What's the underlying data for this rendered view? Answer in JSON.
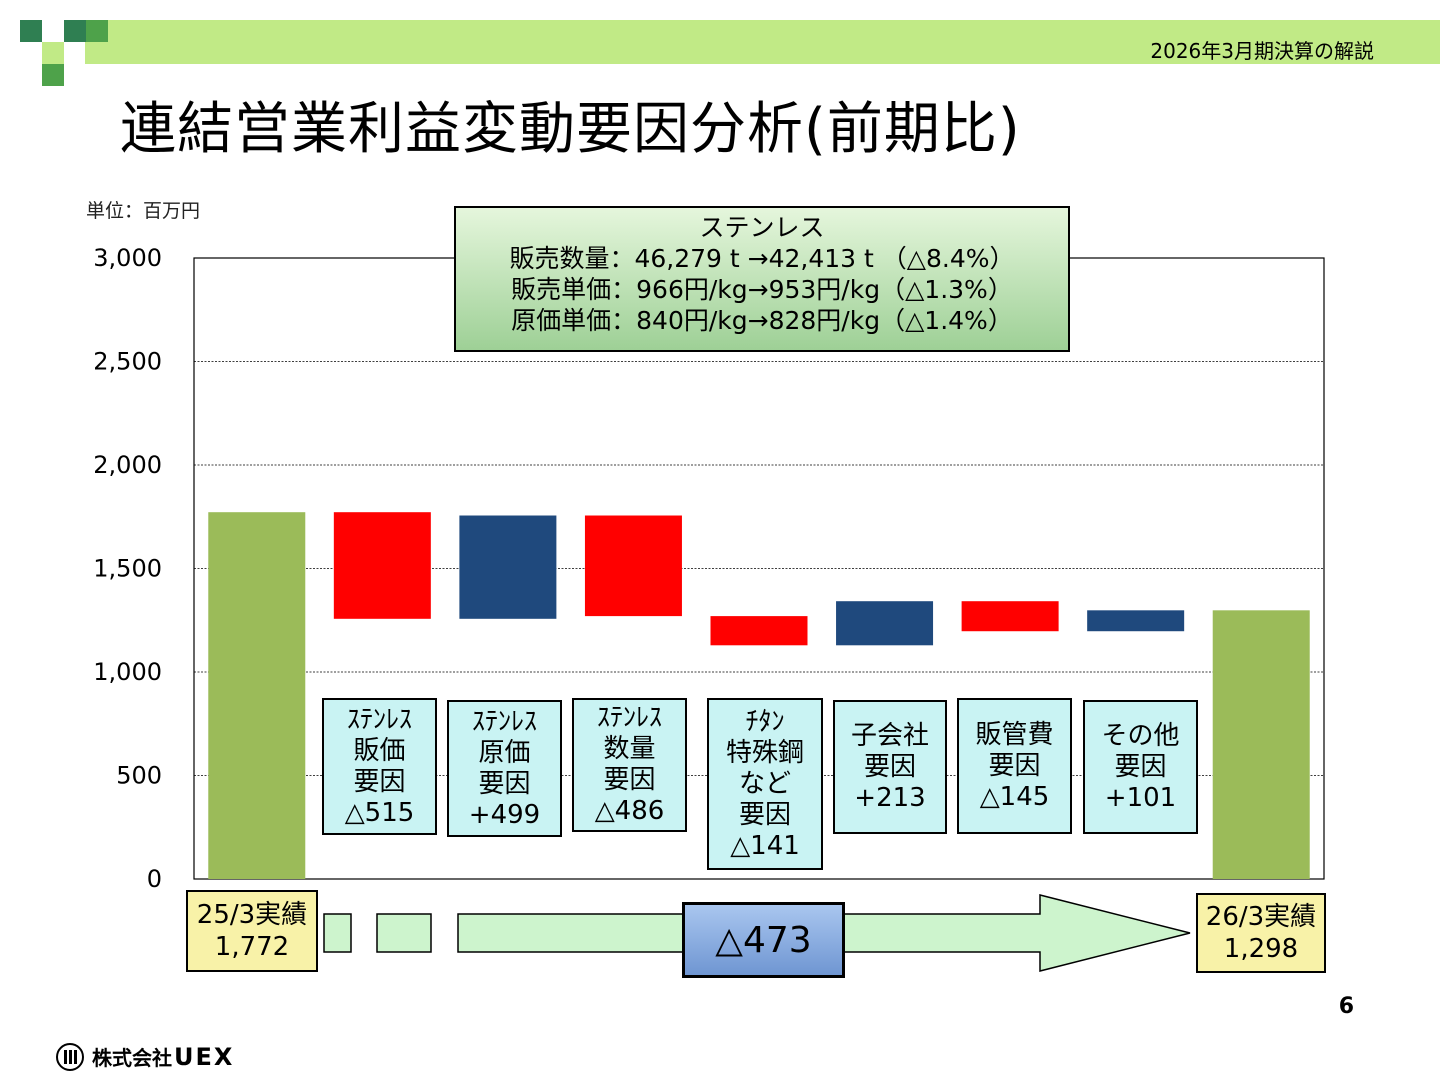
{
  "header": {
    "caption": "2026年3月期決算の解説"
  },
  "title": "連結営業利益変動要因分析(前期比)",
  "unit_label": "単位：百万円",
  "colors": {
    "header_band": "#c1ea86",
    "total_bar": "#9bbb59",
    "decrease": "#ff0000",
    "increase": "#1f497d",
    "factor_box": "#c9f3f3",
    "total_box": "#f8f2a8",
    "arrow": "#cdf4cd",
    "summary_box": "#8cb0e3"
  },
  "info_box": {
    "heading": "ステンレス",
    "lines": [
      "販売数量：46,279 t →42,413 t （△8.4%）",
      "販売単価：966円/kg→953円/kg（△1.3%）",
      "原価単価：840円/kg→828円/kg（△1.4%）"
    ]
  },
  "chart_data": {
    "type": "bar",
    "subtype": "waterfall",
    "ylim": [
      0,
      3000
    ],
    "yticks": [
      "0",
      "500",
      "1,000",
      "1,500",
      "2,000",
      "2,500",
      "3,000"
    ],
    "grid": true,
    "bars": [
      {
        "label": "25/3実績",
        "kind": "total",
        "start": 0,
        "end": 1772
      },
      {
        "label": "ステンレス販価要因",
        "kind": "decrease",
        "start": 1772,
        "end": 1257,
        "value": -515
      },
      {
        "label": "ステンレス原価要因",
        "kind": "increase",
        "start": 1257,
        "end": 1756,
        "value": 499
      },
      {
        "label": "ステンレス数量要因",
        "kind": "decrease",
        "start": 1756,
        "end": 1270,
        "value": -486
      },
      {
        "label": "チタン特殊鋼など要因",
        "kind": "decrease",
        "start": 1270,
        "end": 1129,
        "value": -141
      },
      {
        "label": "子会社要因",
        "kind": "increase",
        "start": 1129,
        "end": 1342,
        "value": 213
      },
      {
        "label": "販管費要因",
        "kind": "decrease",
        "start": 1342,
        "end": 1197,
        "value": -145
      },
      {
        "label": "その他要因",
        "kind": "increase",
        "start": 1197,
        "end": 1298,
        "value": 101
      },
      {
        "label": "26/3実績",
        "kind": "total",
        "start": 0,
        "end": 1298
      }
    ]
  },
  "factor_labels": [
    [
      "ｽﾃﾝﾚｽ",
      "販価",
      "要因",
      "△515"
    ],
    [
      "ｽﾃﾝﾚｽ",
      "原価",
      "要因",
      "+499"
    ],
    [
      "ｽﾃﾝﾚｽ",
      "数量",
      "要因",
      "△486"
    ],
    [
      "ﾁﾀﾝ",
      "特殊鋼",
      "など",
      "要因",
      "△141"
    ],
    [
      "子会社",
      "要因",
      "+213"
    ],
    [
      "販管費",
      "要因",
      "△145"
    ],
    [
      "その他",
      "要因",
      "+101"
    ]
  ],
  "totals": {
    "start": {
      "label": "25/3実績",
      "value": "1,772"
    },
    "end": {
      "label": "26/3実績",
      "value": "1,298"
    }
  },
  "summary": "△473",
  "page_number": "6",
  "footer": {
    "company_prefix": "株式会社",
    "brand": "UEX"
  }
}
